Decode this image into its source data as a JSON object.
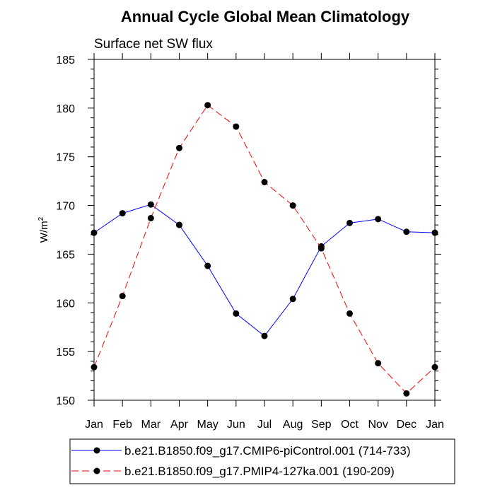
{
  "chart_data": {
    "type": "line",
    "title": "Annual Cycle Global Mean Climatology",
    "subtitle": "Surface net SW flux",
    "xlabel": "",
    "ylabel": "W/m",
    "ylabel_superscript": "2",
    "ylim": [
      150,
      185
    ],
    "yticks": [
      "150",
      "155",
      "160",
      "165",
      "170",
      "175",
      "180",
      "185"
    ],
    "categories": [
      "Jan",
      "Feb",
      "Mar",
      "Apr",
      "May",
      "Jun",
      "Jul",
      "Aug",
      "Sep",
      "Oct",
      "Nov",
      "Dec",
      "Jan"
    ],
    "series": [
      {
        "name": "b.e21.B1850.f09_g17.CMIP6-piControl.001 (714-733)",
        "color": "#0000ff",
        "dash": "solid",
        "values": [
          167.2,
          169.2,
          170.1,
          168.0,
          163.8,
          158.9,
          156.6,
          160.4,
          165.8,
          168.2,
          168.6,
          167.3,
          167.2
        ]
      },
      {
        "name": "b.e21.B1850.f09_g17.PMIP4-127ka.001 (190-209)",
        "color": "#ff0000",
        "dash": "dashed",
        "values": [
          153.4,
          160.7,
          168.7,
          175.9,
          180.3,
          178.1,
          172.4,
          170.0,
          165.6,
          158.9,
          153.8,
          150.7,
          153.4
        ]
      }
    ]
  }
}
